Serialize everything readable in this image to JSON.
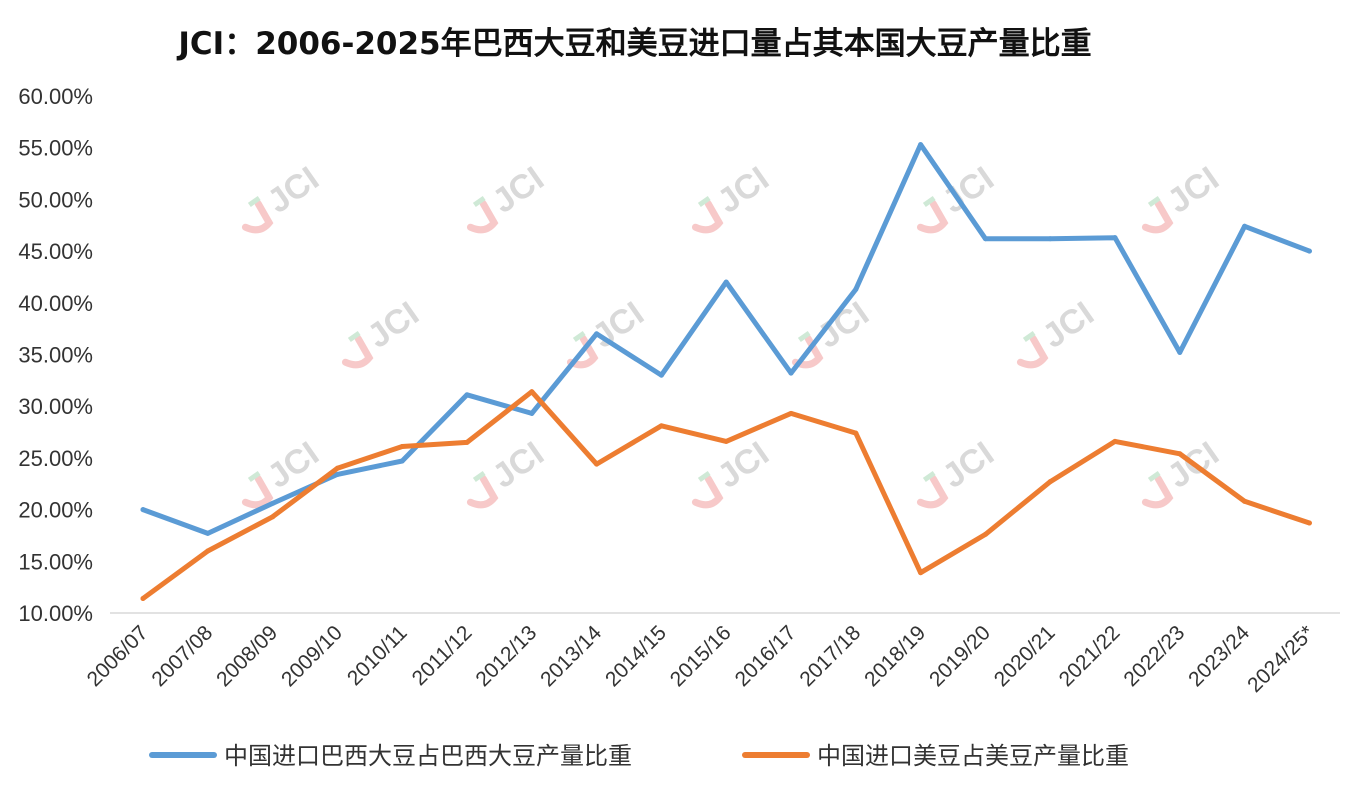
{
  "chart_data": {
    "type": "line",
    "title": "JCI：2006-2025年巴西大豆和美豆进口量占其本国大豆产量比重",
    "categories": [
      "2006/07",
      "2007/08",
      "2008/09",
      "2009/10",
      "2010/11",
      "2011/12",
      "2012/13",
      "2013/14",
      "2014/15",
      "2015/16",
      "2016/17",
      "2017/18",
      "2018/19",
      "2019/20",
      "2020/21",
      "2021/22",
      "2022/23",
      "2023/24",
      "2024/25*"
    ],
    "series": [
      {
        "name": "中国进口巴西大豆占巴西大豆产量比重",
        "color": "#5B9BD5",
        "values": [
          20.0,
          17.7,
          20.6,
          23.4,
          24.7,
          31.1,
          29.3,
          37.0,
          33.0,
          42.0,
          33.2,
          41.3,
          55.3,
          46.2,
          46.2,
          46.3,
          35.2,
          47.4,
          45.0
        ]
      },
      {
        "name": "中国进口美豆占美豆产量比重",
        "color": "#ED7D31",
        "values": [
          11.4,
          16.0,
          19.3,
          24.0,
          26.1,
          26.5,
          31.4,
          24.4,
          28.1,
          26.6,
          29.3,
          27.4,
          13.9,
          17.6,
          22.7,
          26.6,
          25.4,
          20.8,
          18.7
        ]
      }
    ],
    "yticks": [
      "10.00%",
      "15.00%",
      "20.00%",
      "25.00%",
      "30.00%",
      "35.00%",
      "40.00%",
      "45.00%",
      "50.00%",
      "55.00%",
      "60.00%"
    ],
    "ylim": [
      10,
      60
    ],
    "xlabel": "",
    "ylabel": "",
    "grid": false,
    "legend_position": "bottom",
    "watermark": "JCI"
  }
}
